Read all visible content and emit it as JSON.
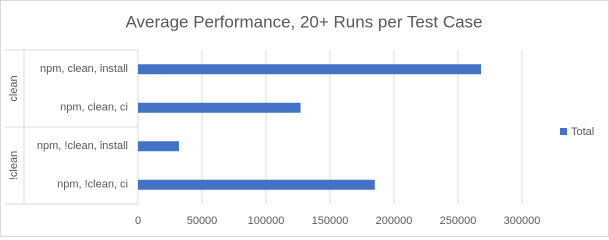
{
  "chart_data": {
    "type": "bar",
    "orientation": "horizontal",
    "title": "Average Performance, 20+ Runs per Test Case",
    "category_groups": [
      {
        "name": "clean",
        "categories": [
          "npm, clean, install",
          "npm, clean, ci"
        ]
      },
      {
        "name": "!clean",
        "categories": [
          "npm, !clean, install",
          "npm, !clean, ci"
        ]
      }
    ],
    "series": [
      {
        "name": "Total",
        "color": "#4472c4",
        "values": [
          268000,
          127000,
          32000,
          185000
        ]
      }
    ],
    "xlim": [
      0,
      300000
    ],
    "xticks": [
      0,
      50000,
      100000,
      150000,
      200000,
      250000,
      300000
    ],
    "grid": true,
    "legend": "right"
  }
}
